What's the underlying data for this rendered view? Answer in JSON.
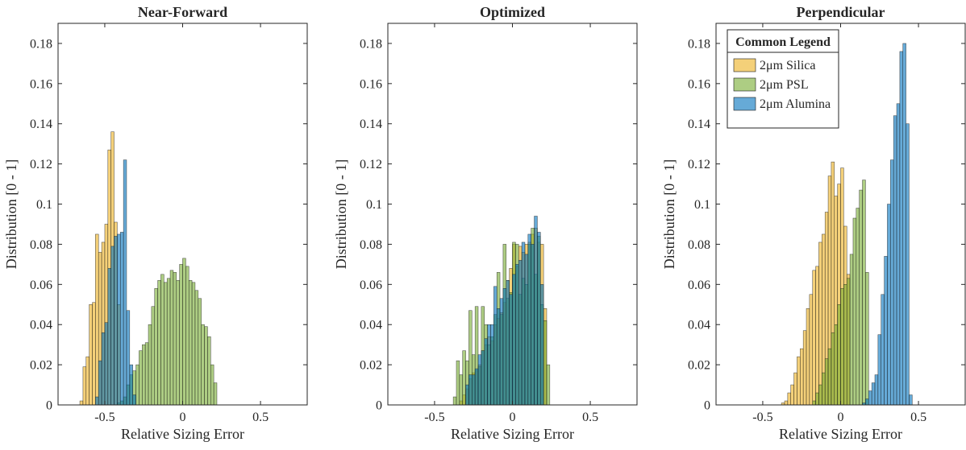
{
  "chart_data": [
    {
      "type": "bar",
      "title": "Near-Forward",
      "xlabel": "Relative Sizing Error",
      "ylabel": "Distribution [0 - 1]",
      "xlim": [
        -0.8,
        0.8
      ],
      "ylim": [
        0,
        0.19
      ],
      "xticks": [
        -0.5,
        0,
        0.5
      ],
      "xtick_labels": [
        "-0.5",
        "0",
        "0.5"
      ],
      "yticks": [
        0,
        0.02,
        0.04,
        0.06,
        0.08,
        0.1,
        0.12,
        0.14,
        0.16,
        0.18
      ],
      "ytick_labels": [
        "0",
        "0.02",
        "0.04",
        "0.06",
        "0.08",
        "0.1",
        "0.12",
        "0.14",
        "0.16",
        "0.18"
      ],
      "bin_width": 0.02,
      "series": [
        {
          "name": "2μm Silica",
          "bin_start": -0.66,
          "values": [
            0.002,
            0.019,
            0.024,
            0.05,
            0.051,
            0.085,
            0.076,
            0.081,
            0.09,
            0.127,
            0.136,
            0.091,
            0.05
          ]
        },
        {
          "name": "2μm PSL",
          "bin_start": -0.42,
          "values": [
            0.001,
            0.002,
            0.004,
            0.01,
            0.015,
            0.017,
            0.02,
            0.027,
            0.03,
            0.031,
            0.04,
            0.049,
            0.058,
            0.062,
            0.065,
            0.061,
            0.063,
            0.067,
            0.066,
            0.062,
            0.07,
            0.073,
            0.069,
            0.062,
            0.061,
            0.057,
            0.053,
            0.04,
            0.039,
            0.034,
            0.02,
            0.011
          ]
        },
        {
          "name": "2μm Alumina",
          "bin_start": -0.56,
          "values": [
            0.004,
            0.022,
            0.036,
            0.041,
            0.068,
            0.079,
            0.084,
            0.085,
            0.086,
            0.122,
            0.047,
            0.02,
            0.005
          ]
        }
      ]
    },
    {
      "type": "bar",
      "title": "Optimized",
      "xlabel": "Relative Sizing Error",
      "ylabel": "Distribution [0 - 1]",
      "xlim": [
        -0.8,
        0.8
      ],
      "ylim": [
        0,
        0.19
      ],
      "xticks": [
        -0.5,
        0,
        0.5
      ],
      "xtick_labels": [
        "-0.5",
        "0",
        "0.5"
      ],
      "yticks": [
        0,
        0.02,
        0.04,
        0.06,
        0.08,
        0.1,
        0.12,
        0.14,
        0.16,
        0.18
      ],
      "ytick_labels": [
        "0",
        "0.02",
        "0.04",
        "0.06",
        "0.08",
        "0.1",
        "0.12",
        "0.14",
        "0.16",
        "0.18"
      ],
      "bin_width": 0.02,
      "series": [
        {
          "name": "2μm Silica",
          "bin_start": -0.34,
          "values": [
            0.002,
            0.005,
            0.008,
            0.013,
            0.016,
            0.017,
            0.02,
            0.027,
            0.03,
            0.034,
            0.032,
            0.04,
            0.043,
            0.046,
            0.051,
            0.062,
            0.068,
            0.08,
            0.069,
            0.079,
            0.076,
            0.08,
            0.081,
            0.085,
            0.088,
            0.081,
            0.08,
            0.048
          ]
        },
        {
          "name": "2μm PSL",
          "bin_start": -0.38,
          "values": [
            0.004,
            0.022,
            0.015,
            0.027,
            0.022,
            0.047,
            0.025,
            0.049,
            0.019,
            0.049,
            0.04,
            0.03,
            0.034,
            0.045,
            0.066,
            0.045,
            0.08,
            0.053,
            0.056,
            0.081,
            0.08,
            0.055,
            0.063,
            0.06,
            0.08,
            0.088,
            0.065,
            0.084,
            0.05,
            0.042,
            0.02
          ]
        },
        {
          "name": "2μm Alumina",
          "bin_start": -0.3,
          "values": [
            0.01,
            0.015,
            0.015,
            0.018,
            0.025,
            0.027,
            0.033,
            0.04,
            0.04,
            0.059,
            0.048,
            0.053,
            0.058,
            0.062,
            0.055,
            0.065,
            0.07,
            0.072,
            0.081,
            0.075,
            0.085,
            0.08,
            0.094,
            0.086,
            0.06
          ]
        }
      ]
    },
    {
      "type": "bar",
      "title": "Perpendicular",
      "xlabel": "Relative Sizing Error",
      "ylabel": "Distribution [0 - 1]",
      "xlim": [
        -0.8,
        0.8
      ],
      "ylim": [
        0,
        0.19
      ],
      "xticks": [
        -0.5,
        0,
        0.5
      ],
      "xtick_labels": [
        "-0.5",
        "0",
        "0.5"
      ],
      "yticks": [
        0,
        0.02,
        0.04,
        0.06,
        0.08,
        0.1,
        0.12,
        0.14,
        0.16,
        0.18
      ],
      "ytick_labels": [
        "0",
        "0.02",
        "0.04",
        "0.06",
        "0.08",
        "0.1",
        "0.12",
        "0.14",
        "0.16",
        "0.18"
      ],
      "bin_width": 0.02,
      "legend": {
        "title": "Common Legend",
        "position": "top-left"
      },
      "series": [
        {
          "name": "2μm Silica",
          "bin_start": -0.38,
          "values": [
            0.001,
            0.002,
            0.006,
            0.01,
            0.016,
            0.024,
            0.028,
            0.037,
            0.048,
            0.055,
            0.067,
            0.069,
            0.081,
            0.085,
            0.096,
            0.114,
            0.121,
            0.104,
            0.11,
            0.118,
            0.089,
            0.065
          ]
        },
        {
          "name": "2μm PSL",
          "bin_start": -0.18,
          "values": [
            0.002,
            0.006,
            0.01,
            0.016,
            0.023,
            0.028,
            0.036,
            0.04,
            0.05,
            0.058,
            0.06,
            0.063,
            0.075,
            0.093,
            0.098,
            0.107,
            0.112,
            0.066
          ]
        },
        {
          "name": "2μm Alumina",
          "bin_start": 0.14,
          "values": [
            0.001,
            0.003,
            0.007,
            0.011,
            0.015,
            0.035,
            0.055,
            0.074,
            0.1,
            0.122,
            0.144,
            0.15,
            0.176,
            0.18,
            0.14,
            0.005
          ]
        }
      ]
    }
  ],
  "colors": {
    "2μm Silica": "#EDB120",
    "2μm PSL": "#77AC30",
    "2μm Alumina": "#0072BD",
    "axes": "#262626"
  }
}
